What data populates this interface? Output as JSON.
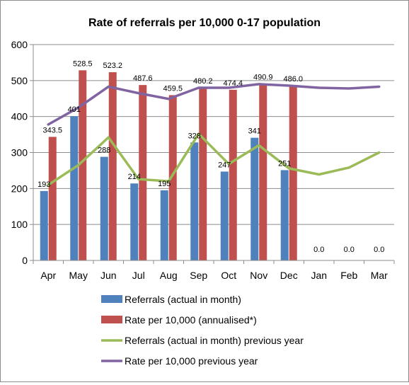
{
  "chart_data": {
    "type": "bar",
    "title": "Rate of referrals per 10,000 0-17 population",
    "xlabel": "",
    "ylabel": "",
    "ylim": [
      0,
      600
    ],
    "yticks": [
      0,
      100,
      200,
      300,
      400,
      500,
      600
    ],
    "grid": true,
    "legend_position": "bottom",
    "categories": [
      "Apr",
      "May",
      "Jun",
      "Jul",
      "Aug",
      "Sep",
      "Oct",
      "Nov",
      "Dec",
      "Jan",
      "Feb",
      "Mar"
    ],
    "series": [
      {
        "name": "Referrals (actual in month)",
        "type": "bar",
        "color": "#4f81bd",
        "values": [
          193,
          401,
          288,
          214,
          195,
          328,
          247,
          341,
          251,
          null,
          null,
          null
        ],
        "labels": [
          "193",
          "401",
          "288",
          "214",
          "195",
          "328",
          "247",
          "341",
          "251",
          "",
          "",
          ""
        ]
      },
      {
        "name": "Rate per 10,000 (annualised*)",
        "type": "bar",
        "color": "#c0504d",
        "values": [
          343.5,
          528.5,
          523.2,
          487.6,
          459.5,
          480.2,
          474.4,
          490.9,
          486.0,
          0,
          0,
          0
        ],
        "labels": [
          "343.5",
          "528.5",
          "523.2",
          "487.6",
          "459.5",
          "480.2",
          "474.4",
          "490.9",
          "486.0",
          "0.0",
          "0.0",
          "0.0"
        ]
      },
      {
        "name": "Referrals (actual in month) previous year",
        "type": "line",
        "color": "#9bbb59",
        "values": [
          210,
          265,
          342,
          226,
          220,
          352,
          268,
          320,
          256,
          239,
          258,
          300
        ]
      },
      {
        "name": "Rate per 10,000 previous year",
        "type": "line",
        "color": "#8064a2",
        "values": [
          378,
          425,
          483,
          465,
          449,
          480,
          480,
          490,
          486,
          480,
          478,
          483
        ]
      }
    ]
  }
}
